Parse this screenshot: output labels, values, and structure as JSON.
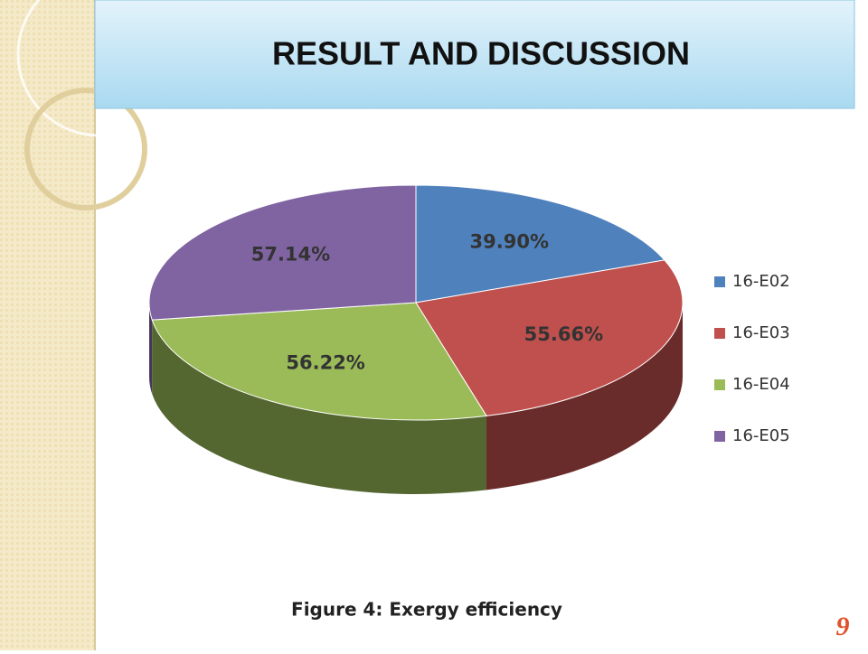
{
  "slide": {
    "title": "RESULT AND DISCUSSION",
    "caption": "Figure 4: Exergy efficiency",
    "page_number": "9"
  },
  "chart_data": {
    "type": "pie",
    "categories": [
      "16-E02",
      "16-E03",
      "16-E04",
      "16-E05"
    ],
    "values": [
      39.9,
      55.66,
      56.22,
      57.14
    ],
    "value_labels": [
      "39.90%",
      "55.66%",
      "56.22%",
      "57.14%"
    ],
    "colors": [
      "#4f81bd",
      "#c0504d",
      "#9bbb59",
      "#8064a2"
    ],
    "legend": "right"
  }
}
